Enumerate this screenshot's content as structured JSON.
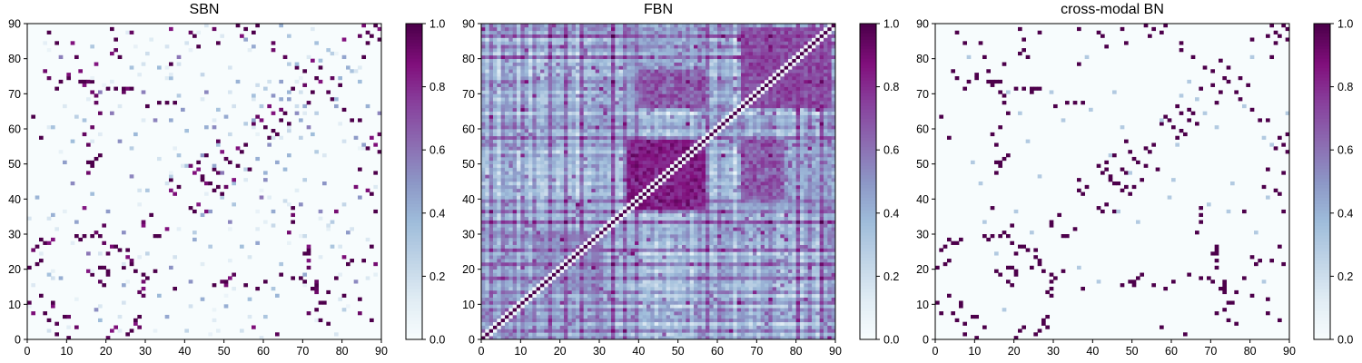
{
  "chart_data": [
    {
      "type": "heatmap",
      "title": "SBN",
      "xlim": [
        0,
        90
      ],
      "ylim": [
        0,
        90
      ],
      "xticks": [
        "0",
        "10",
        "20",
        "30",
        "40",
        "50",
        "60",
        "70",
        "80",
        "90"
      ],
      "yticks": [
        "0",
        "10",
        "20",
        "30",
        "40",
        "50",
        "60",
        "70",
        "80",
        "90"
      ],
      "colorbar": {
        "range": [
          0.0,
          1.0
        ],
        "ticks": [
          "0.0",
          "0.2",
          "0.4",
          "0.6",
          "0.8",
          "1.0"
        ]
      },
      "grid_size": 90,
      "density": "sparse",
      "strong_links": [
        [
          3,
          57
        ],
        [
          1,
          63
        ],
        [
          5,
          87
        ],
        [
          8,
          73
        ],
        [
          7,
          71
        ],
        [
          10,
          74
        ],
        [
          13,
          73
        ],
        [
          14,
          73
        ],
        [
          16,
          73
        ],
        [
          7,
          84
        ],
        [
          20,
          71
        ],
        [
          22,
          71
        ],
        [
          24,
          71
        ],
        [
          26,
          71
        ],
        [
          21,
          88
        ],
        [
          22,
          85
        ],
        [
          23,
          80
        ],
        [
          33,
          67
        ],
        [
          35,
          67
        ],
        [
          37,
          67
        ],
        [
          30,
          66
        ],
        [
          42,
          86
        ],
        [
          43,
          83
        ],
        [
          36,
          78
        ],
        [
          44,
          45
        ],
        [
          46,
          44
        ],
        [
          47,
          42
        ],
        [
          48,
          43
        ],
        [
          49,
          41
        ],
        [
          43,
          50
        ],
        [
          45,
          52
        ],
        [
          47,
          48
        ],
        [
          51,
          50
        ],
        [
          53,
          49
        ],
        [
          54,
          53
        ],
        [
          55,
          55
        ],
        [
          56,
          48
        ],
        [
          53,
          89
        ],
        [
          55,
          88
        ],
        [
          57,
          87
        ],
        [
          58,
          89
        ],
        [
          60,
          60
        ],
        [
          61,
          57
        ],
        [
          62,
          59
        ],
        [
          63,
          58
        ],
        [
          64,
          62
        ],
        [
          65,
          64
        ],
        [
          66,
          61
        ],
        [
          67,
          71
        ],
        [
          70,
          76
        ],
        [
          72,
          70
        ],
        [
          73,
          74
        ],
        [
          74,
          77
        ],
        [
          77,
          68
        ],
        [
          79,
          72
        ],
        [
          80,
          65
        ],
        [
          82,
          62
        ],
        [
          84,
          62
        ],
        [
          85,
          80
        ],
        [
          86,
          84
        ],
        [
          87,
          86
        ],
        [
          88,
          89
        ],
        [
          89,
          85
        ],
        [
          90,
          52
        ],
        [
          88,
          47
        ],
        [
          87,
          41
        ],
        [
          84,
          48
        ],
        [
          86,
          54
        ],
        [
          9,
          6
        ],
        [
          10,
          0
        ],
        [
          5,
          5
        ],
        [
          3,
          12
        ],
        [
          6,
          10
        ],
        [
          7,
          1
        ],
        [
          4,
          7
        ],
        [
          12,
          29
        ],
        [
          13,
          28
        ],
        [
          14,
          29
        ],
        [
          16,
          29
        ],
        [
          23,
          25
        ],
        [
          22,
          26
        ],
        [
          24,
          20
        ],
        [
          25,
          25
        ],
        [
          26,
          21
        ],
        [
          27,
          19
        ],
        [
          29,
          18
        ],
        [
          30,
          17
        ],
        [
          32,
          19
        ],
        [
          20,
          19
        ],
        [
          18,
          20
        ],
        [
          16,
          18
        ],
        [
          28,
          6
        ],
        [
          27,
          5
        ],
        [
          26,
          2
        ],
        [
          25,
          1
        ],
        [
          37,
          14
        ],
        [
          47,
          15
        ],
        [
          50,
          16
        ],
        [
          55,
          15
        ],
        [
          58,
          14
        ],
        [
          60,
          16
        ],
        [
          64,
          18
        ],
        [
          67,
          17
        ],
        [
          70,
          24
        ],
        [
          71,
          25
        ],
        [
          72,
          14
        ],
        [
          73,
          15
        ],
        [
          74,
          5
        ],
        [
          76,
          4
        ],
        [
          78,
          17
        ],
        [
          80,
          12
        ],
        [
          81,
          21
        ],
        [
          82,
          22
        ],
        [
          84,
          11
        ],
        [
          87,
          26
        ],
        [
          88,
          36
        ],
        [
          87,
          5
        ],
        [
          70,
          16
        ],
        [
          69,
          17
        ],
        [
          75,
          10
        ],
        [
          76,
          13
        ],
        [
          31,
          35
        ],
        [
          33,
          29
        ],
        [
          32,
          29
        ],
        [
          36,
          45
        ],
        [
          38,
          43
        ],
        [
          41,
          37
        ],
        [
          42,
          36
        ],
        [
          3,
          28
        ],
        [
          4,
          27
        ],
        [
          2,
          21
        ],
        [
          3,
          22
        ],
        [
          0,
          20
        ],
        [
          15,
          50
        ],
        [
          16,
          49
        ],
        [
          17,
          51
        ],
        [
          18,
          52
        ],
        [
          19,
          15
        ]
      ],
      "medium_links": [
        [
          2,
          40
        ],
        [
          6,
          60
        ],
        [
          9,
          50
        ],
        [
          12,
          33
        ],
        [
          15,
          24
        ],
        [
          18,
          70
        ],
        [
          21,
          64
        ],
        [
          24,
          30
        ],
        [
          27,
          58
        ],
        [
          30,
          42
        ],
        [
          33,
          77
        ],
        [
          36,
          20
        ],
        [
          39,
          65
        ],
        [
          42,
          28
        ],
        [
          45,
          70
        ],
        [
          48,
          55
        ],
        [
          51,
          33
        ],
        [
          54,
          26
        ],
        [
          57,
          69
        ],
        [
          60,
          45
        ],
        [
          63,
          12
        ],
        [
          66,
          52
        ],
        [
          69,
          38
        ],
        [
          72,
          58
        ],
        [
          75,
          44
        ],
        [
          78,
          66
        ],
        [
          81,
          30
        ],
        [
          84,
          40
        ],
        [
          87,
          57
        ],
        [
          89,
          64
        ],
        [
          5,
          18
        ],
        [
          11,
          44
        ],
        [
          17,
          8
        ],
        [
          23,
          56
        ],
        [
          29,
          70
        ],
        [
          35,
          6
        ],
        [
          41,
          16
        ],
        [
          47,
          60
        ],
        [
          53,
          73
        ],
        [
          59,
          40
        ],
        [
          65,
          48
        ],
        [
          71,
          60
        ],
        [
          77,
          26
        ],
        [
          83,
          16
        ],
        [
          8,
          80
        ],
        [
          14,
          62
        ],
        [
          20,
          36
        ],
        [
          26,
          46
        ],
        [
          32,
          62
        ],
        [
          38,
          80
        ],
        [
          44,
          35
        ],
        [
          50,
          63
        ],
        [
          56,
          11
        ],
        [
          62,
          36
        ],
        [
          68,
          78
        ],
        [
          74,
          36
        ],
        [
          80,
          80
        ],
        [
          86,
          66
        ],
        [
          40,
          49
        ],
        [
          49,
          47
        ],
        [
          52,
          38
        ],
        [
          46,
          36
        ],
        [
          44,
          52
        ],
        [
          58,
          51
        ],
        [
          61,
          55
        ],
        [
          66,
          68
        ],
        [
          70,
          66
        ],
        [
          73,
          84
        ],
        [
          76,
          82
        ],
        [
          79,
          74
        ],
        [
          81,
          77
        ],
        [
          83,
          57
        ],
        [
          85,
          55
        ],
        [
          57,
          62
        ],
        [
          59,
          66
        ],
        [
          62,
          69
        ],
        [
          68,
          64
        ],
        [
          64,
          73
        ]
      ]
    },
    {
      "type": "heatmap",
      "title": "FBN",
      "xlim": [
        0,
        90
      ],
      "ylim": [
        0,
        90
      ],
      "xticks": [
        "0",
        "10",
        "20",
        "30",
        "40",
        "50",
        "60",
        "70",
        "80",
        "90"
      ],
      "yticks": [
        "0",
        "10",
        "20",
        "30",
        "40",
        "50",
        "60",
        "70",
        "80",
        "90"
      ],
      "colorbar": {
        "range": [
          0.0,
          1.0
        ],
        "ticks": [
          "0.0",
          "0.2",
          "0.4",
          "0.6",
          "0.8",
          "1.0"
        ]
      },
      "grid_size": 90,
      "density": "dense",
      "diagonal_value": 1.0,
      "blocks": [
        {
          "from": 37,
          "to": 56,
          "value": 0.86
        },
        {
          "from": 66,
          "to": 88,
          "value": 0.74
        },
        {
          "from": 14,
          "to": 30,
          "value": 0.52
        },
        {
          "from": 0,
          "to": 12,
          "value": 0.42
        },
        {
          "from": 57,
          "to": 66,
          "value": 0.38
        }
      ],
      "cross_blocks": [
        {
          "rows": [
            37,
            56
          ],
          "cols": [
            66,
            88
          ],
          "value": 0.46
        },
        {
          "rows": [
            66,
            76
          ],
          "cols": [
            40,
            56
          ],
          "value": 0.72
        },
        {
          "rows": [
            14,
            30
          ],
          "cols": [
            0,
            12
          ],
          "value": 0.38
        }
      ],
      "strong_columns": [
        0,
        2,
        5,
        8,
        11,
        17,
        21,
        23,
        25,
        29,
        31,
        33,
        36,
        43,
        52,
        55,
        57,
        60,
        65,
        71,
        74,
        80,
        83,
        86,
        89
      ],
      "strong_rows": [
        2,
        6,
        10,
        13,
        17,
        21,
        25,
        30,
        33,
        39,
        57,
        61,
        63,
        66,
        73,
        77,
        80,
        86,
        88
      ]
    },
    {
      "type": "heatmap",
      "title": "cross-modal BN",
      "xlim": [
        0,
        90
      ],
      "ylim": [
        0,
        90
      ],
      "xticks": [
        "0",
        "10",
        "20",
        "30",
        "40",
        "50",
        "60",
        "70",
        "80",
        "90"
      ],
      "yticks": [
        "0",
        "10",
        "20",
        "30",
        "40",
        "50",
        "60",
        "70",
        "80",
        "90"
      ],
      "colorbar": {
        "range": [
          0.0,
          1.0
        ],
        "ticks": [
          "0.0",
          "0.2",
          "0.4",
          "0.6",
          "0.8",
          "1.0"
        ]
      },
      "grid_size": 90,
      "density": "sparse",
      "note_source": "same link structure as SBN with weaker links removed"
    }
  ],
  "colors": {
    "scale": [
      "#f7fcfd",
      "#e0ecf4",
      "#bfd3e6",
      "#9ebcda",
      "#8c96c6",
      "#8c6bb1",
      "#88419d",
      "#810f7c",
      "#4d004b"
    ],
    "axis": "#000000"
  }
}
